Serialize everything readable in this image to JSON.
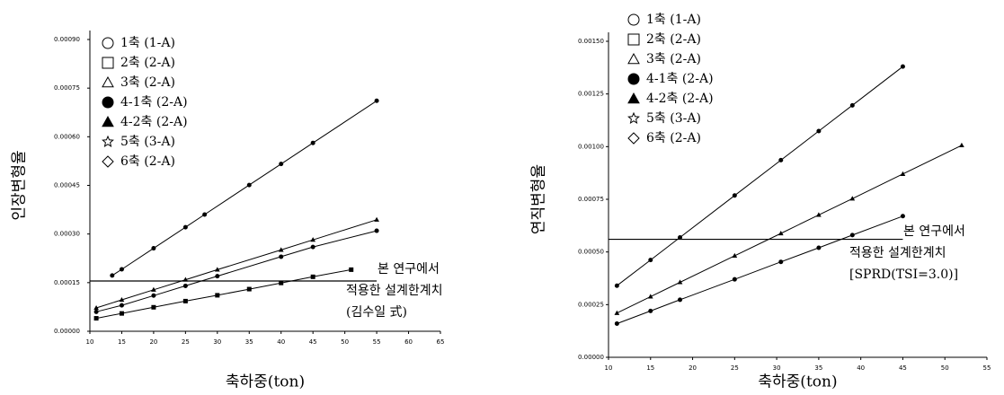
{
  "chart_data": [
    {
      "type": "line",
      "y_label": "인장변형율",
      "x_label": "축하중(ton)",
      "xlim": [
        10,
        65
      ],
      "xticks": [
        10,
        15,
        20,
        25,
        30,
        35,
        40,
        45,
        50,
        55,
        60,
        65
      ],
      "ylim": [
        0,
        0.0009
      ],
      "yticks": [
        {
          "value": 0,
          "label": "0.00000"
        },
        {
          "value": 0.00015,
          "label": "0.00015"
        },
        {
          "value": 0.0003,
          "label": "0.00030"
        },
        {
          "value": 0.00045,
          "label": "0.00045"
        },
        {
          "value": 0.0006,
          "label": "0.00060"
        },
        {
          "value": 0.00075,
          "label": "0.00075"
        },
        {
          "value": 0.0009,
          "label": "0.00090"
        }
      ],
      "series": [
        {
          "name": "1축 (1-A)",
          "marker": "circle",
          "color": "#000000",
          "x": [
            11,
            15,
            20,
            25,
            30,
            40,
            45,
            55
          ],
          "values": [
            6e-05,
            8e-05,
            0.00011,
            0.00014,
            0.00017,
            0.00023,
            0.00026,
            0.00031
          ]
        },
        {
          "name": "2축 (2-A)",
          "marker": "square",
          "color": "#000000",
          "x": [
            11,
            15,
            20,
            25,
            30,
            35,
            40,
            45,
            51
          ],
          "values": [
            4e-05,
            5.5e-05,
            7.4e-05,
            9.3e-05,
            0.000111,
            0.00013,
            0.000149,
            0.000168,
            0.00019
          ]
        },
        {
          "name": "3축 (2-A)",
          "marker": "triangle",
          "color": "#000000",
          "x": [],
          "values": []
        },
        {
          "name": "4-1축 (2-A)",
          "marker": "circle-filled",
          "color": "#000000",
          "x": [
            13.5,
            15,
            20,
            25,
            28,
            35,
            40,
            45,
            55
          ],
          "values": [
            0.000172,
            0.000191,
            0.000256,
            0.000321,
            0.00036,
            0.000451,
            0.000516,
            0.000581,
            0.000711
          ]
        },
        {
          "name": "4-2축 (2-A)",
          "marker": "triangle-filled",
          "color": "#000000",
          "x": [
            11,
            15,
            20,
            25,
            30,
            40,
            45,
            55
          ],
          "values": [
            7.2e-05,
            9.7e-05,
            0.000128,
            0.000159,
            0.00019,
            0.000251,
            0.000282,
            0.000344
          ]
        },
        {
          "name": "5축 (3-A)",
          "marker": "star",
          "color": "#000000",
          "x": [],
          "values": []
        },
        {
          "name": "6축 (2-A)",
          "marker": "diamond",
          "color": "#000000",
          "x": [],
          "values": []
        }
      ],
      "annotation": {
        "value": 0.000155,
        "text": [
          "본 연구에서",
          "적용한 설계한계치",
          "(김수일 式)"
        ]
      }
    },
    {
      "type": "line",
      "y_label": "연직변형율",
      "x_label": "축하중(ton)",
      "xlim": [
        10,
        55
      ],
      "xticks": [
        10,
        15,
        20,
        25,
        30,
        35,
        40,
        45,
        50,
        55
      ],
      "ylim": [
        0,
        0.0015
      ],
      "yticks": [
        {
          "value": 0,
          "label": "0.00000"
        },
        {
          "value": 0.00025,
          "label": "0.00025"
        },
        {
          "value": 0.0005,
          "label": "0.00050"
        },
        {
          "value": 0.00075,
          "label": "0.00075"
        },
        {
          "value": 0.001,
          "label": "0.00100"
        },
        {
          "value": 0.00125,
          "label": "0.00125"
        },
        {
          "value": 0.0015,
          "label": "0.00150"
        }
      ],
      "series": [
        {
          "name": "1축 (1-A)",
          "marker": "circle",
          "color": "#000000",
          "x": [
            11,
            15,
            18.5,
            25,
            30.5,
            35,
            39,
            45
          ],
          "values": [
            0.00034,
            0.000462,
            0.000569,
            0.000768,
            0.000936,
            0.001074,
            0.001196,
            0.00138
          ]
        },
        {
          "name": "2축 (2-A)",
          "marker": "square",
          "color": "#000000",
          "x": [],
          "values": []
        },
        {
          "name": "3축 (2-A)",
          "marker": "triangle",
          "color": "#000000",
          "x": [],
          "values": []
        },
        {
          "name": "4-1축 (2-A)",
          "marker": "circle-filled",
          "color": "#000000",
          "x": [
            11,
            15,
            18.5,
            25,
            30.5,
            35,
            39,
            45
          ],
          "values": [
            0.00016,
            0.00022,
            0.000273,
            0.00037,
            0.000453,
            0.00052,
            0.00058,
            0.00067
          ]
        },
        {
          "name": "4-2축 (2-A)",
          "marker": "triangle-filled",
          "color": "#000000",
          "x": [
            11,
            15,
            18.5,
            25,
            30.5,
            35,
            39,
            45,
            52
          ],
          "values": [
            0.00021,
            0.000288,
            0.000356,
            0.000482,
            0.000588,
            0.000676,
            0.000753,
            0.00087,
            0.001006
          ]
        },
        {
          "name": "5축 (3-A)",
          "marker": "star",
          "color": "#000000",
          "x": [],
          "values": []
        },
        {
          "name": "6축 (2-A)",
          "marker": "diamond",
          "color": "#000000",
          "x": [],
          "values": []
        }
      ],
      "annotation": {
        "value": 0.00056,
        "text": [
          "본 연구에서",
          "적용한 설계한계치",
          "[SPRD(TSI=3.0)]"
        ]
      }
    }
  ]
}
